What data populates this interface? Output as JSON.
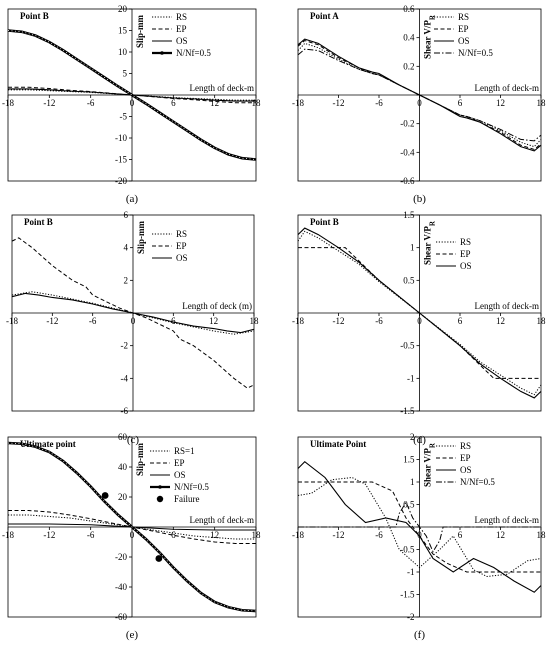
{
  "chart_data": [
    {
      "panel": "a",
      "type": "line",
      "caption": "(a)",
      "plot_label": "Point B",
      "ylabel": "Slip-mm",
      "xlabel": "Length of deck-m",
      "xlim": [
        -18,
        18
      ],
      "ylim": [
        -20,
        20
      ],
      "xticks": [
        -18,
        -12,
        -6,
        0,
        6,
        12,
        18
      ],
      "yticks": [
        -20,
        -15,
        -10,
        -5,
        0,
        5,
        10,
        15,
        20
      ],
      "legend_position": "top-right",
      "series": [
        {
          "name": "RS",
          "style": "dotted",
          "x": [
            -18,
            -15,
            -12,
            -9,
            -6,
            -3,
            0,
            3,
            6,
            9,
            12,
            15,
            18
          ],
          "y": [
            1.2,
            1.2,
            1.0,
            0.8,
            0.6,
            0.3,
            0,
            -0.3,
            -0.6,
            -0.8,
            -1.0,
            -1.2,
            -1.2
          ]
        },
        {
          "name": "EP",
          "style": "dashed",
          "x": [
            -18,
            -15,
            -12,
            -9,
            -6,
            -3,
            0,
            3,
            6,
            9,
            12,
            15,
            18
          ],
          "y": [
            1.8,
            1.8,
            1.5,
            1.1,
            0.8,
            0.4,
            0,
            -0.4,
            -0.8,
            -1.1,
            -1.5,
            -1.8,
            -1.8
          ]
        },
        {
          "name": "OS",
          "style": "solid",
          "x": [
            -18,
            -15,
            -12,
            -9,
            -6,
            -3,
            0,
            3,
            6,
            9,
            12,
            15,
            18
          ],
          "y": [
            1.4,
            1.4,
            1.2,
            0.9,
            0.7,
            0.35,
            0,
            -0.35,
            -0.7,
            -0.9,
            -1.2,
            -1.4,
            -1.4
          ]
        },
        {
          "name": "N/Nf=0.5",
          "style": "thick",
          "x": [
            -18,
            -16,
            -14,
            -12,
            -10,
            -8,
            -6,
            -4,
            -2,
            0,
            2,
            4,
            6,
            8,
            10,
            12,
            14,
            16,
            18
          ],
          "y": [
            15,
            14.7,
            13.8,
            12.3,
            10.4,
            8.3,
            6.2,
            4.1,
            2.0,
            0,
            -2.0,
            -4.1,
            -6.2,
            -8.3,
            -10.4,
            -12.3,
            -13.8,
            -14.7,
            -15
          ]
        }
      ]
    },
    {
      "panel": "b",
      "type": "line",
      "caption": "(b)",
      "plot_label": "Point A",
      "ylabel": "Shear V/P",
      "ylabel_sub": "R",
      "xlabel": "Length of deck-m",
      "xlim": [
        -18,
        18
      ],
      "ylim": [
        -0.6,
        0.6
      ],
      "xticks": [
        -18,
        -12,
        -6,
        0,
        6,
        12,
        18
      ],
      "yticks": [
        -0.6,
        -0.4,
        -0.2,
        0,
        0.2,
        0.4,
        0.6
      ],
      "legend_position": "top-right",
      "series": [
        {
          "name": "RS",
          "style": "dotted",
          "x": [
            -18,
            -17,
            -15,
            -12,
            -9,
            -7,
            -6,
            -3,
            0,
            3,
            6,
            7,
            9,
            12,
            15,
            17,
            18
          ],
          "y": [
            0.31,
            0.36,
            0.33,
            0.25,
            0.18,
            0.15,
            0.14,
            0.07,
            0,
            -0.07,
            -0.14,
            -0.15,
            -0.18,
            -0.25,
            -0.33,
            -0.36,
            -0.31
          ]
        },
        {
          "name": "EP",
          "style": "dashed",
          "x": [
            -18,
            -17,
            -15,
            -12,
            -9,
            -7,
            -6,
            -3,
            0,
            3,
            6,
            7,
            9,
            12,
            15,
            17,
            18
          ],
          "y": [
            0.34,
            0.38,
            0.35,
            0.26,
            0.19,
            0.15,
            0.14,
            0.07,
            0,
            -0.07,
            -0.14,
            -0.15,
            -0.19,
            -0.26,
            -0.35,
            -0.38,
            -0.34
          ]
        },
        {
          "name": "OS",
          "style": "solid",
          "x": [
            -18,
            -17,
            -15,
            -12,
            -9,
            -7,
            -6,
            -3,
            0,
            3,
            6,
            7,
            9,
            12,
            15,
            17,
            18
          ],
          "y": [
            0.35,
            0.39,
            0.36,
            0.27,
            0.19,
            0.16,
            0.15,
            0.07,
            0,
            -0.07,
            -0.15,
            -0.16,
            -0.19,
            -0.27,
            -0.36,
            -0.39,
            -0.35
          ]
        },
        {
          "name": "N/Nf=0.5",
          "style": "dashdot",
          "x": [
            -18,
            -17,
            -15,
            -12,
            -9,
            -7,
            -6,
            -3,
            0,
            3,
            6,
            7,
            9,
            12,
            15,
            17,
            18
          ],
          "y": [
            0.28,
            0.32,
            0.31,
            0.24,
            0.18,
            0.15,
            0.14,
            0.07,
            0,
            -0.07,
            -0.14,
            -0.15,
            -0.18,
            -0.24,
            -0.31,
            -0.32,
            -0.28
          ]
        }
      ]
    },
    {
      "panel": "c",
      "type": "line",
      "caption": "(c)",
      "plot_label": "Point B",
      "ylabel": "Slip-mm",
      "xlabel": "Length of deck (m)",
      "xlim": [
        -18,
        18
      ],
      "ylim": [
        -6,
        6
      ],
      "xticks": [
        -18,
        -12,
        -6,
        0,
        6,
        12,
        18
      ],
      "yticks": [
        -6,
        -4,
        -2,
        0,
        2,
        4,
        6
      ],
      "legend_position": "top-right",
      "series": [
        {
          "name": "RS",
          "style": "dotted",
          "x": [
            -18,
            -15,
            -12,
            -9,
            -6,
            -3,
            0,
            3,
            6,
            9,
            12,
            15,
            18
          ],
          "y": [
            1.1,
            1.3,
            1.1,
            0.85,
            0.6,
            0.3,
            0,
            -0.3,
            -0.6,
            -0.85,
            -1.1,
            -1.3,
            -1.1
          ]
        },
        {
          "name": "EP",
          "style": "dashed",
          "x": [
            -18,
            -17,
            -15,
            -12,
            -9,
            -7,
            -6,
            -4,
            -2,
            0,
            2,
            4,
            6,
            7,
            9,
            12,
            15,
            17,
            18
          ],
          "y": [
            4.4,
            4.6,
            4.0,
            2.9,
            2.0,
            1.6,
            1.1,
            0.7,
            0.3,
            0,
            -0.3,
            -0.7,
            -1.1,
            -1.6,
            -2.0,
            -2.9,
            -4.0,
            -4.6,
            -4.4
          ]
        },
        {
          "name": "OS",
          "style": "solid",
          "x": [
            -18,
            -16,
            -14,
            -12,
            -9,
            -6,
            -3,
            0,
            3,
            6,
            9,
            12,
            14,
            16,
            18
          ],
          "y": [
            1.0,
            1.2,
            1.1,
            0.95,
            0.8,
            0.55,
            0.25,
            0,
            -0.25,
            -0.55,
            -0.8,
            -0.95,
            -1.1,
            -1.2,
            -1.0
          ]
        }
      ]
    },
    {
      "panel": "d",
      "type": "line",
      "caption": "(d)",
      "plot_label": "Point B",
      "ylabel": "Shear V/P",
      "ylabel_sub": "R",
      "xlabel": "Length of deck-m",
      "xlim": [
        -18,
        18
      ],
      "ylim": [
        -1.5,
        1.5
      ],
      "xticks": [
        -18,
        -12,
        -6,
        0,
        6,
        12,
        18
      ],
      "yticks": [
        -1.5,
        -1,
        -0.5,
        0,
        0.5,
        1,
        1.5
      ],
      "legend_position": "top-right",
      "series": [
        {
          "name": "RS",
          "style": "dotted",
          "x": [
            -18,
            -17,
            -15,
            -12,
            -9,
            -6,
            -3,
            0,
            3,
            6,
            9,
            12,
            15,
            17,
            18
          ],
          "y": [
            1.1,
            1.25,
            1.15,
            0.95,
            0.75,
            0.48,
            0.24,
            0,
            -0.24,
            -0.48,
            -0.75,
            -0.95,
            -1.15,
            -1.25,
            -1.1
          ]
        },
        {
          "name": "EP",
          "style": "dashed",
          "x": [
            -18,
            -11,
            -9,
            -6,
            -3,
            0,
            3,
            6,
            9,
            11,
            18
          ],
          "y": [
            1,
            1,
            0.8,
            0.5,
            0.25,
            0,
            -0.25,
            -0.5,
            -0.8,
            -1,
            -1
          ]
        },
        {
          "name": "OS",
          "style": "solid",
          "x": [
            -18,
            -17,
            -15,
            -12,
            -9,
            -6,
            -3,
            0,
            3,
            6,
            9,
            12,
            15,
            17,
            18
          ],
          "y": [
            1.2,
            1.3,
            1.2,
            1.0,
            0.78,
            0.5,
            0.25,
            0,
            -0.25,
            -0.5,
            -0.78,
            -1.0,
            -1.2,
            -1.3,
            -1.2
          ]
        }
      ]
    },
    {
      "panel": "e",
      "type": "line",
      "caption": "(e)",
      "plot_label": "Ultimate point",
      "ylabel": "Slip-mm",
      "xlabel": "Length of deck-m",
      "xlim": [
        -18,
        18
      ],
      "ylim": [
        -60,
        60
      ],
      "xticks": [
        -18,
        -12,
        -6,
        0,
        6,
        12,
        18
      ],
      "yticks": [
        -60,
        -40,
        -20,
        0,
        20,
        40,
        60
      ],
      "legend_position": "top-right",
      "series": [
        {
          "name": "RS=1",
          "style": "dotted",
          "x": [
            -18,
            -15,
            -12,
            -9,
            -6,
            -3,
            0,
            3,
            6,
            9,
            12,
            15,
            18
          ],
          "y": [
            8,
            8,
            7,
            6,
            4,
            2,
            0,
            -2,
            -4,
            -6,
            -7,
            -8,
            -8
          ]
        },
        {
          "name": "EP",
          "style": "dashed",
          "x": [
            -18,
            -15,
            -12,
            -9,
            -6,
            -3,
            0,
            3,
            6,
            9,
            12,
            15,
            18
          ],
          "y": [
            11,
            11,
            10,
            8,
            5.5,
            2.7,
            0,
            -2.7,
            -5.5,
            -8,
            -10,
            -11,
            -11
          ]
        },
        {
          "name": "OS",
          "style": "solid",
          "x": [
            -18,
            -12,
            -6,
            0,
            6,
            12,
            18
          ],
          "y": [
            2,
            2,
            1.5,
            0,
            -1.5,
            -2,
            -2
          ]
        },
        {
          "name": "N/Nf=0.5",
          "style": "thick",
          "x": [
            -18,
            -16,
            -14,
            -12,
            -10,
            -8,
            -6,
            -4,
            -2,
            0,
            2,
            4,
            6,
            8,
            10,
            12,
            14,
            16,
            18
          ],
          "y": [
            56,
            55.5,
            53.5,
            50,
            44,
            36,
            27,
            17,
            8,
            0,
            -8,
            -17,
            -27,
            -36,
            -44,
            -50,
            -53.5,
            -55.5,
            -56
          ]
        }
      ],
      "failure_points": {
        "name": "Failure",
        "x": [
          -3.9,
          3.9
        ],
        "y": [
          21,
          -21
        ]
      }
    },
    {
      "panel": "f",
      "type": "line",
      "caption": "(f)",
      "plot_label": "Ultimate Point",
      "ylabel": "Shear V/P",
      "ylabel_sub": "R",
      "xlabel": "Length of deck-m",
      "xlim": [
        -18,
        18
      ],
      "ylim": [
        -2,
        2
      ],
      "xticks": [
        -18,
        -12,
        -6,
        0,
        6,
        12,
        18
      ],
      "yticks": [
        -2,
        -1.5,
        -1,
        -0.5,
        0,
        0.5,
        1,
        1.5,
        2
      ],
      "legend_position": "top-right",
      "series": [
        {
          "name": "RS",
          "style": "dotted",
          "x": [
            -18,
            -16,
            -13,
            -10,
            -8,
            -5,
            -3,
            0,
            3,
            5,
            8,
            10,
            13,
            16,
            18
          ],
          "y": [
            0.7,
            0.75,
            1.05,
            1.1,
            0.95,
            0.2,
            -0.5,
            -0.9,
            -0.5,
            -0.2,
            -0.95,
            -1.1,
            -1.05,
            -0.75,
            -0.7
          ]
        },
        {
          "name": "EP",
          "style": "dashed",
          "x": [
            -18,
            -7,
            -4,
            -2,
            0,
            2,
            4,
            7,
            18
          ],
          "y": [
            1,
            1,
            0.8,
            0.2,
            -0.2,
            -0.6,
            -0.8,
            -1,
            -1
          ]
        },
        {
          "name": "OS",
          "style": "solid",
          "x": [
            -18,
            -17,
            -14,
            -11,
            -8,
            -5,
            -2,
            0,
            2,
            5,
            8,
            11,
            14,
            17,
            18
          ],
          "y": [
            1.3,
            1.45,
            1.1,
            0.5,
            0.1,
            0.2,
            0.1,
            -0.2,
            -0.7,
            -1.0,
            -0.7,
            -0.9,
            -1.2,
            -1.45,
            -1.3
          ]
        },
        {
          "name": "N/Nf=0.5",
          "style": "dashdot",
          "x": [
            -18,
            -3.5,
            -3,
            -2,
            -1,
            0,
            1,
            2,
            3,
            3.5,
            18
          ],
          "y": [
            0,
            0,
            0.3,
            0.55,
            0.2,
            0,
            -0.2,
            -0.55,
            -0.3,
            0,
            0
          ]
        }
      ]
    }
  ]
}
